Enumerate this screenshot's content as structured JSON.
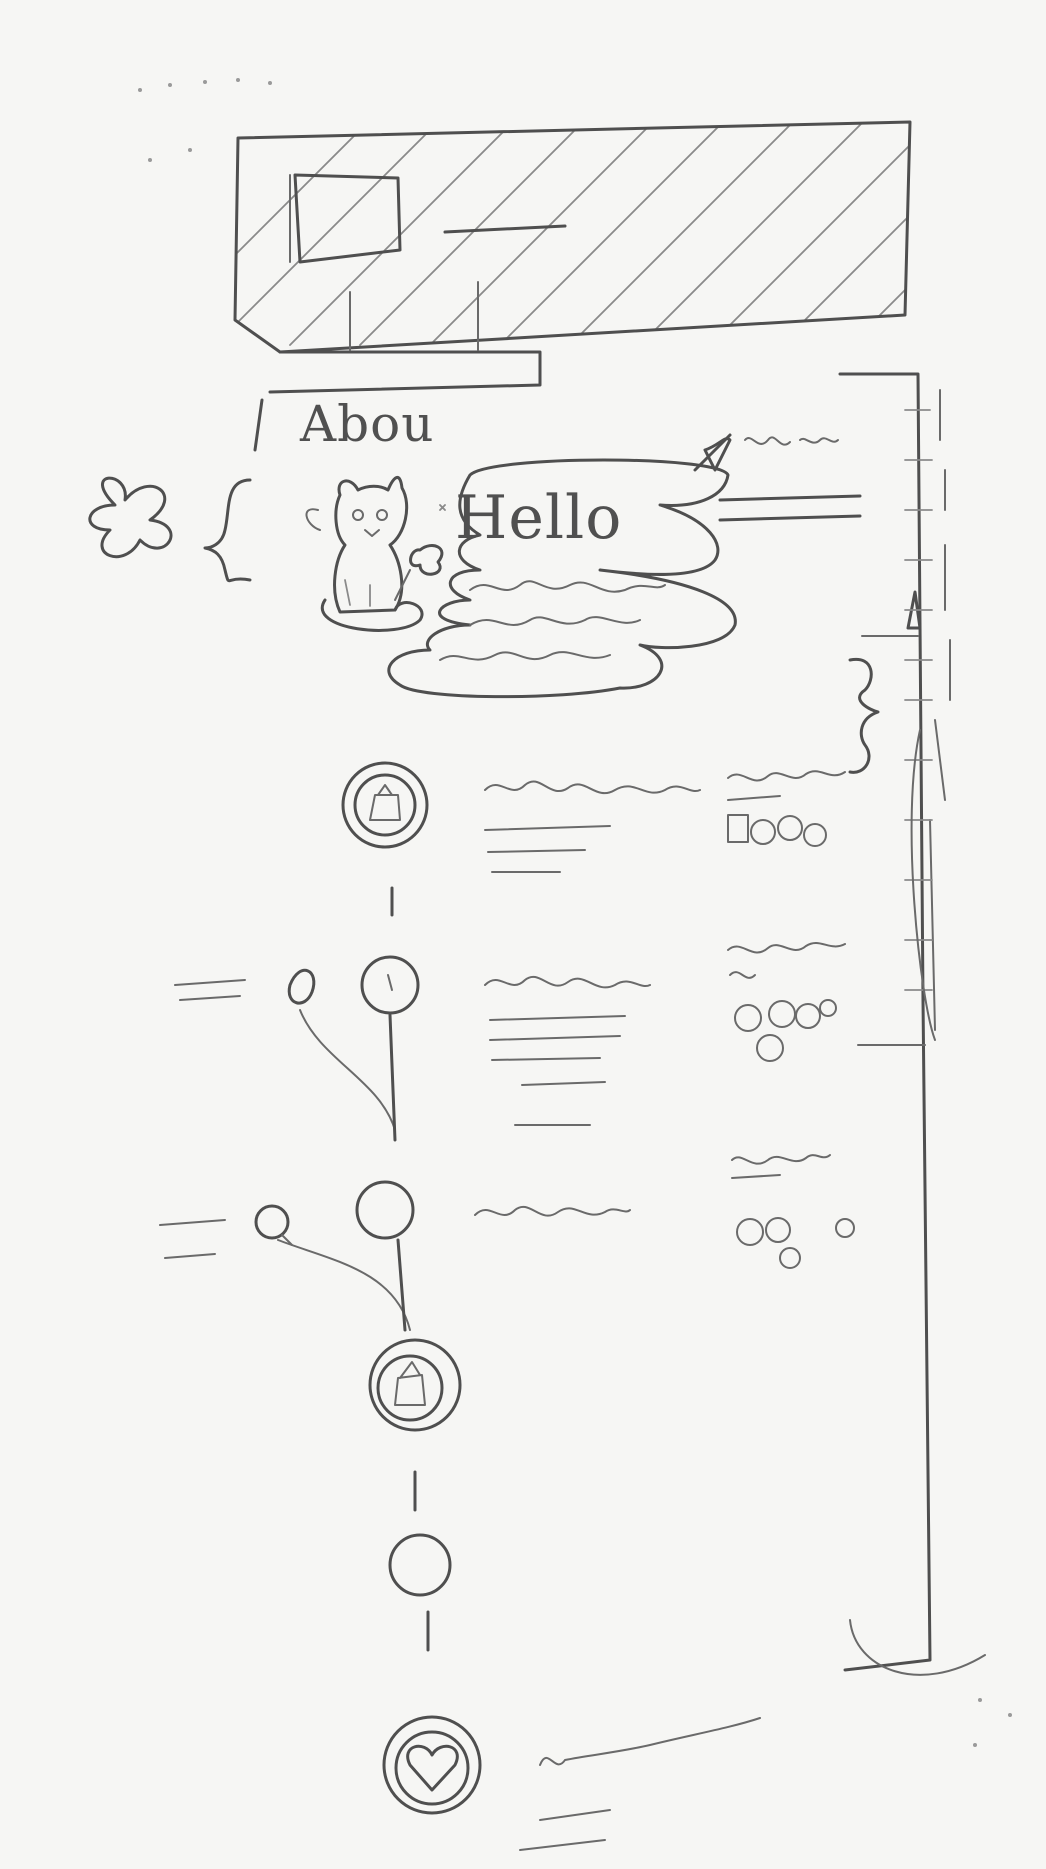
{
  "section_heading": "Abou",
  "greeting": "Hello"
}
